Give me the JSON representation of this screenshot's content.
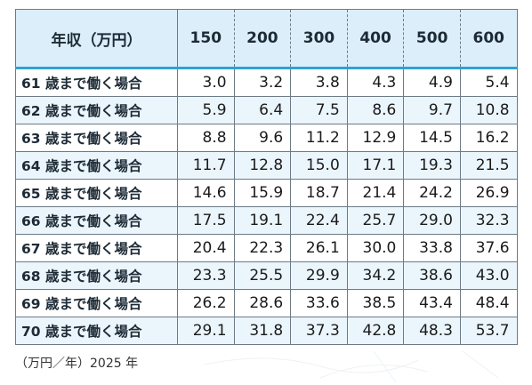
{
  "table": {
    "header_label": "年収（万円）",
    "columns": [
      "150",
      "200",
      "300",
      "400",
      "500",
      "600"
    ],
    "rows": [
      {
        "label": "61 歳まで働く場合",
        "values": [
          "3.0",
          "3.2",
          "3.8",
          "4.3",
          "4.9",
          "5.4"
        ]
      },
      {
        "label": "62 歳まで働く場合",
        "values": [
          "5.9",
          "6.4",
          "7.5",
          "8.6",
          "9.7",
          "10.8"
        ]
      },
      {
        "label": "63 歳まで働く場合",
        "values": [
          "8.8",
          "9.6",
          "11.2",
          "12.9",
          "14.5",
          "16.2"
        ]
      },
      {
        "label": "64 歳まで働く場合",
        "values": [
          "11.7",
          "12.8",
          "15.0",
          "17.1",
          "19.3",
          "21.5"
        ]
      },
      {
        "label": "65 歳まで働く場合",
        "values": [
          "14.6",
          "15.9",
          "18.7",
          "21.4",
          "24.2",
          "26.9"
        ]
      },
      {
        "label": "66 歳まで働く場合",
        "values": [
          "17.5",
          "19.1",
          "22.4",
          "25.7",
          "29.0",
          "32.3"
        ]
      },
      {
        "label": "67 歳まで働く場合",
        "values": [
          "20.4",
          "22.3",
          "26.1",
          "30.0",
          "33.8",
          "37.6"
        ]
      },
      {
        "label": "68 歳まで働く場合",
        "values": [
          "23.3",
          "25.5",
          "29.9",
          "34.2",
          "38.6",
          "43.0"
        ]
      },
      {
        "label": "69 歳まで働く場合",
        "values": [
          "26.2",
          "28.6",
          "33.6",
          "38.5",
          "43.4",
          "48.4"
        ]
      },
      {
        "label": "70 歳まで働く場合",
        "values": [
          "29.1",
          "31.8",
          "37.3",
          "42.8",
          "48.3",
          "53.7"
        ]
      }
    ]
  },
  "note": "（万円／年）2025 年",
  "colors": {
    "header_bg": "#dbeef9",
    "header_rule": "#2ea2d6",
    "row_alt_bg": "#ebf5fc",
    "border": "#6d7b86"
  }
}
